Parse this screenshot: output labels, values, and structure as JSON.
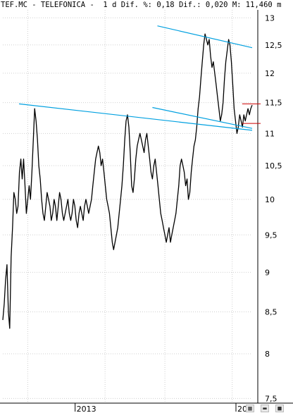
{
  "header": {
    "ticker": "TEF.MC",
    "name": "TELEFONICA",
    "period": "1 d",
    "dif_label": "Dif. %:",
    "dif_pct": "0,18",
    "dif_abs_label": "Dif.:",
    "dif_abs": "0,020",
    "last_label": "M:",
    "last": "11,460",
    "unit": "m"
  },
  "toolbar": {
    "items": [
      "chart-icon",
      "minimize-icon",
      "close-icon"
    ]
  },
  "colors": {
    "price": "#000000",
    "trendline": "#00a0e0",
    "level": "#cc0000",
    "grid": "#cfcfcf",
    "axis": "#000000"
  },
  "chart_data": {
    "type": "line",
    "title": "",
    "xlabel": "",
    "ylabel": "",
    "grid": true,
    "legend": "none",
    "y_scale": "log",
    "ylim": [
      7.45,
      13.15
    ],
    "x_ticks": [
      "2013",
      "20"
    ],
    "y_ticks": [
      {
        "value": 13,
        "label": "13"
      },
      {
        "value": 12.5,
        "label": "12,5"
      },
      {
        "value": 12,
        "label": "12"
      },
      {
        "value": 11.5,
        "label": "11,5"
      },
      {
        "value": 11,
        "label": "11"
      },
      {
        "value": 10.5,
        "label": "10,5"
      },
      {
        "value": 10,
        "label": "10"
      },
      {
        "value": 9.5,
        "label": "9,5"
      },
      {
        "value": 9,
        "label": "9"
      },
      {
        "value": 8.5,
        "label": "8,5"
      },
      {
        "value": 8,
        "label": "8"
      },
      {
        "value": 7.5,
        "label": "7,5"
      }
    ],
    "series": [
      {
        "values": [
          8.4,
          8.6,
          8.9,
          9.1,
          8.5,
          8.3,
          9.2,
          9.6,
          10.1,
          10.0,
          9.8,
          9.9,
          10.4,
          10.6,
          10.3,
          10.6,
          10.2,
          9.8,
          10.0,
          10.2,
          10.0,
          10.4,
          10.9,
          11.4,
          11.2,
          10.9,
          10.5,
          10.3,
          10.0,
          9.8,
          9.7,
          9.9,
          10.1,
          10.0,
          9.9,
          9.7,
          9.8,
          10.0,
          9.9,
          9.7,
          9.9,
          10.1,
          10.0,
          9.8,
          9.7,
          9.8,
          9.9,
          10.0,
          9.8,
          9.7,
          9.8,
          10.0,
          9.9,
          9.7,
          9.6,
          9.8,
          9.9,
          9.8,
          9.7,
          9.9,
          10.0,
          9.9,
          9.8,
          9.9,
          10.0,
          10.2,
          10.4,
          10.6,
          10.7,
          10.8,
          10.7,
          10.5,
          10.6,
          10.4,
          10.2,
          10.0,
          9.9,
          9.8,
          9.6,
          9.4,
          9.3,
          9.4,
          9.5,
          9.6,
          9.8,
          10.0,
          10.2,
          10.5,
          10.9,
          11.2,
          11.3,
          11.1,
          10.7,
          10.2,
          10.1,
          10.3,
          10.6,
          10.8,
          10.9,
          11.0,
          10.9,
          10.8,
          10.7,
          10.9,
          11.0,
          10.8,
          10.6,
          10.4,
          10.3,
          10.5,
          10.6,
          10.4,
          10.2,
          10.0,
          9.8,
          9.7,
          9.6,
          9.5,
          9.4,
          9.5,
          9.6,
          9.4,
          9.5,
          9.6,
          9.7,
          9.8,
          10.0,
          10.2,
          10.5,
          10.6,
          10.5,
          10.4,
          10.2,
          10.3,
          10.0,
          10.1,
          10.4,
          10.6,
          10.8,
          10.9,
          11.1,
          11.4,
          11.6,
          11.9,
          12.2,
          12.5,
          12.7,
          12.6,
          12.5,
          12.6,
          12.3,
          12.1,
          12.2,
          12.0,
          11.8,
          11.6,
          11.4,
          11.2,
          11.3,
          11.5,
          11.9,
          12.2,
          12.4,
          12.6,
          12.5,
          12.2,
          11.8,
          11.4,
          11.2,
          11.0,
          11.1,
          11.3,
          11.2,
          11.1,
          11.3,
          11.2,
          11.3,
          11.4,
          11.3,
          11.4,
          11.46
        ]
      }
    ],
    "trendlines": [
      {
        "from": [
          0.065,
          11.48
        ],
        "to": [
          1.0,
          11.05
        ]
      },
      {
        "from": [
          0.62,
          12.85
        ],
        "to": [
          1.0,
          12.45
        ]
      },
      {
        "from": [
          0.6,
          11.42
        ],
        "to": [
          1.0,
          11.08
        ]
      }
    ],
    "levels": [
      {
        "from": 0.96,
        "to": 1.0,
        "value": 11.48
      },
      {
        "from": 0.96,
        "to": 1.0,
        "value": 11.16
      }
    ]
  }
}
